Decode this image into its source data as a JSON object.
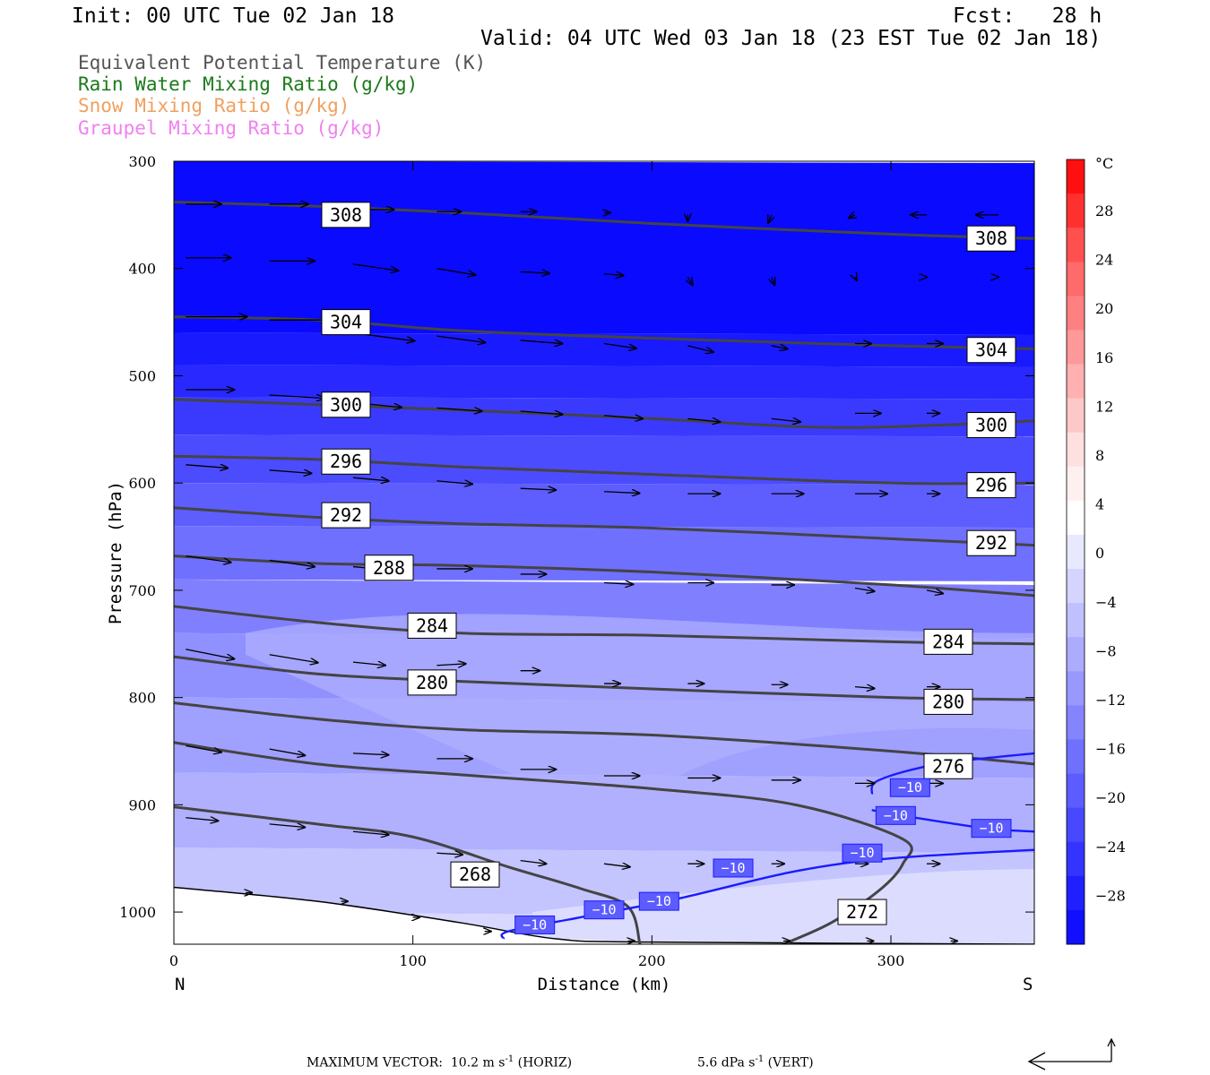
{
  "header": {
    "init": "Init: 00 UTC Tue 02 Jan 18",
    "fcst": "Fcst:   28 h",
    "valid": "Valid: 04 UTC Wed 03 Jan 18 (23 EST Tue 02 Jan 18)"
  },
  "legend": [
    {
      "label": "Equivalent Potential Temperature (K)",
      "color": "#555555"
    },
    {
      "label": "Rain Water Mixing Ratio (g/kg)",
      "color": "#1a7a1a"
    },
    {
      "label": "Snow Mixing Ratio (g/kg)",
      "color": "#f0a060"
    },
    {
      "label": "Graupel Mixing Ratio (g/kg)",
      "color": "#f080f0"
    }
  ],
  "footer": {
    "prefix": "MAXIMUM VECTOR:",
    "horiz_value": "10.2 m s",
    "horiz_exp": "-1",
    "horiz_tag": "(HORIZ)",
    "vert_value": "5.6 dPa s",
    "vert_exp": "-1",
    "vert_tag": "(VERT)"
  },
  "chart_data": {
    "type": "heatmap",
    "xlabel": "Distance (km)",
    "ylabel": "Pressure (hPa)",
    "xlim": [
      0,
      360
    ],
    "ylim": [
      1030,
      300
    ],
    "x_ticks": [
      0,
      100,
      200,
      300
    ],
    "y_ticks": [
      300,
      400,
      500,
      600,
      700,
      800,
      900,
      1000
    ],
    "x_end_labels": {
      "left": "N",
      "right": "S"
    },
    "colorbar": {
      "unit": "°C",
      "tick_labels": [
        "28",
        "24",
        "20",
        "16",
        "12",
        "8",
        "4",
        "0",
        "−4",
        "−8",
        "−12",
        "−16",
        "−20",
        "−24",
        "−28"
      ],
      "colors": [
        "#ff1010",
        "#ff3030",
        "#ff5050",
        "#ff6a6a",
        "#ff8080",
        "#ff9898",
        "#ffb0b0",
        "#ffc8c8",
        "#ffe0e0",
        "#fff0f0",
        "#ffffff",
        "#e8e8ff",
        "#d4d4ff",
        "#c0c0ff",
        "#acacff",
        "#9898ff",
        "#8484ff",
        "#7070ff",
        "#5c5cff",
        "#4848ff",
        "#3434ff",
        "#2020ff",
        "#1010ff"
      ]
    },
    "theta_e_contours": [
      {
        "label": "308",
        "values": [
          [
            0,
            338
          ],
          [
            60,
            342
          ],
          [
            120,
            348
          ],
          [
            200,
            358
          ],
          [
            300,
            368
          ],
          [
            360,
            372
          ]
        ]
      },
      {
        "label": "304",
        "values": [
          [
            0,
            445
          ],
          [
            60,
            448
          ],
          [
            120,
            458
          ],
          [
            200,
            465
          ],
          [
            300,
            472
          ],
          [
            360,
            475
          ]
        ]
      },
      {
        "label": "300",
        "values": [
          [
            0,
            522
          ],
          [
            60,
            527
          ],
          [
            120,
            532
          ],
          [
            200,
            540
          ],
          [
            270,
            548
          ],
          [
            320,
            546
          ],
          [
            360,
            542
          ]
        ]
      },
      {
        "label": "296",
        "values": [
          [
            0,
            575
          ],
          [
            60,
            578
          ],
          [
            120,
            585
          ],
          [
            200,
            592
          ],
          [
            300,
            600
          ],
          [
            360,
            600
          ]
        ]
      },
      {
        "label": "292",
        "values": [
          [
            0,
            623
          ],
          [
            60,
            632
          ],
          [
            120,
            638
          ],
          [
            200,
            642
          ],
          [
            300,
            652
          ],
          [
            360,
            658
          ]
        ]
      },
      {
        "label": "288",
        "values": [
          [
            0,
            668
          ],
          [
            60,
            675
          ],
          [
            120,
            677
          ],
          [
            200,
            683
          ],
          [
            300,
            695
          ],
          [
            360,
            705
          ]
        ]
      },
      {
        "label": "284",
        "values": [
          [
            0,
            715
          ],
          [
            60,
            730
          ],
          [
            120,
            740
          ],
          [
            200,
            742
          ],
          [
            300,
            748
          ],
          [
            360,
            750
          ]
        ]
      },
      {
        "label": "280",
        "values": [
          [
            0,
            762
          ],
          [
            60,
            778
          ],
          [
            120,
            785
          ],
          [
            200,
            792
          ],
          [
            300,
            800
          ],
          [
            360,
            802
          ]
        ]
      },
      {
        "label": "276",
        "values": [
          [
            0,
            805
          ],
          [
            60,
            820
          ],
          [
            120,
            830
          ],
          [
            200,
            835
          ],
          [
            300,
            850
          ],
          [
            360,
            862
          ]
        ]
      },
      {
        "label": "272",
        "values": [
          [
            0,
            842
          ],
          [
            60,
            862
          ],
          [
            120,
            872
          ],
          [
            200,
            885
          ],
          [
            260,
            900
          ],
          [
            305,
            932
          ],
          [
            305,
            955
          ],
          [
            295,
            980
          ],
          [
            275,
            1010
          ],
          [
            255,
            1030
          ]
        ]
      },
      {
        "label": "268",
        "values": [
          [
            0,
            902
          ],
          [
            60,
            918
          ],
          [
            100,
            930
          ],
          [
            140,
            958
          ],
          [
            170,
            978
          ],
          [
            190,
            995
          ],
          [
            195,
            1030
          ]
        ]
      }
    ],
    "temperature_contours": [
      {
        "label": "−10",
        "values": [
          [
            138,
            1025
          ],
          [
            140,
            1018
          ],
          [
            170,
            1005
          ],
          [
            210,
            988
          ],
          [
            260,
            962
          ],
          [
            300,
            950
          ],
          [
            360,
            942
          ]
        ]
      },
      {
        "label": "−10",
        "values": [
          [
            292,
            890
          ],
          [
            295,
            877
          ],
          [
            320,
            862
          ],
          [
            360,
            852
          ]
        ]
      },
      {
        "label": "−10",
        "values": [
          [
            292,
            905
          ],
          [
            310,
            912
          ],
          [
            340,
            922
          ],
          [
            360,
            925
          ]
        ]
      }
    ],
    "contour_labels_theta": [
      {
        "label": "308",
        "x": 72,
        "y": 350
      },
      {
        "label": "308",
        "x": 342,
        "y": 372
      },
      {
        "label": "304",
        "x": 72,
        "y": 450
      },
      {
        "label": "304",
        "x": 342,
        "y": 476
      },
      {
        "label": "300",
        "x": 72,
        "y": 527
      },
      {
        "label": "300",
        "x": 342,
        "y": 546
      },
      {
        "label": "296",
        "x": 72,
        "y": 580
      },
      {
        "label": "296",
        "x": 342,
        "y": 602
      },
      {
        "label": "292",
        "x": 72,
        "y": 630
      },
      {
        "label": "292",
        "x": 342,
        "y": 656
      },
      {
        "label": "288",
        "x": 90,
        "y": 679
      },
      {
        "label": "284",
        "x": 108,
        "y": 733
      },
      {
        "label": "284",
        "x": 324,
        "y": 748
      },
      {
        "label": "280",
        "x": 108,
        "y": 786
      },
      {
        "label": "280",
        "x": 324,
        "y": 804
      },
      {
        "label": "276",
        "x": 324,
        "y": 864
      },
      {
        "label": "272",
        "x": 288,
        "y": 1000
      },
      {
        "label": "268",
        "x": 126,
        "y": 965
      }
    ],
    "contour_labels_temp": [
      {
        "label": "−10",
        "x": 151,
        "y": 1012
      },
      {
        "label": "−10",
        "x": 180,
        "y": 998
      },
      {
        "label": "−10",
        "x": 203,
        "y": 990
      },
      {
        "label": "−10",
        "x": 234,
        "y": 959
      },
      {
        "label": "−10",
        "x": 288,
        "y": 945
      },
      {
        "label": "−10",
        "x": 302,
        "y": 910
      },
      {
        "label": "−10",
        "x": 308,
        "y": 884
      },
      {
        "label": "−10",
        "x": 342,
        "y": 922
      }
    ],
    "wind_vectors": [
      {
        "x": 5,
        "p": 340,
        "u": 22,
        "v": 0
      },
      {
        "x": 40,
        "p": 340,
        "u": 24,
        "v": 0
      },
      {
        "x": 80,
        "p": 345,
        "u": 18,
        "v": 0
      },
      {
        "x": 110,
        "p": 347,
        "u": 15,
        "v": 0
      },
      {
        "x": 145,
        "p": 347,
        "u": 10,
        "v": 0
      },
      {
        "x": 180,
        "p": 348,
        "u": 4,
        "v": 0
      },
      {
        "x": 215,
        "p": 350,
        "u": 0,
        "v": 4
      },
      {
        "x": 250,
        "p": 350,
        "u": -2,
        "v": 5
      },
      {
        "x": 285,
        "p": 350,
        "u": -4,
        "v": 2
      },
      {
        "x": 315,
        "p": 350,
        "u": -10,
        "v": 0
      },
      {
        "x": 345,
        "p": 350,
        "u": -14,
        "v": 0
      },
      {
        "x": 5,
        "p": 390,
        "u": 28,
        "v": 0
      },
      {
        "x": 40,
        "p": 393,
        "u": 28,
        "v": 0
      },
      {
        "x": 75,
        "p": 396,
        "u": 28,
        "v": 4
      },
      {
        "x": 110,
        "p": 400,
        "u": 24,
        "v": 4
      },
      {
        "x": 145,
        "p": 403,
        "u": 18,
        "v": 1
      },
      {
        "x": 180,
        "p": 405,
        "u": 12,
        "v": 1
      },
      {
        "x": 215,
        "p": 408,
        "u": 3,
        "v": 5
      },
      {
        "x": 250,
        "p": 408,
        "u": 2,
        "v": 5
      },
      {
        "x": 285,
        "p": 408,
        "u": 1,
        "v": 2
      },
      {
        "x": 315,
        "p": 408,
        "u": 0,
        "v": 0
      },
      {
        "x": 345,
        "p": 408,
        "u": 0,
        "v": 0
      },
      {
        "x": 5,
        "p": 445,
        "u": 38,
        "v": 0
      },
      {
        "x": 40,
        "p": 448,
        "u": 38,
        "v": 0
      },
      {
        "x": 75,
        "p": 460,
        "u": 38,
        "v": 5
      },
      {
        "x": 110,
        "p": 463,
        "u": 30,
        "v": 4
      },
      {
        "x": 145,
        "p": 467,
        "u": 26,
        "v": 2
      },
      {
        "x": 180,
        "p": 470,
        "u": 20,
        "v": 3
      },
      {
        "x": 215,
        "p": 472,
        "u": 16,
        "v": 4
      },
      {
        "x": 250,
        "p": 472,
        "u": 10,
        "v": 2
      },
      {
        "x": 285,
        "p": 470,
        "u": 10,
        "v": 0
      },
      {
        "x": 315,
        "p": 470,
        "u": 10,
        "v": 0
      },
      {
        "x": 5,
        "p": 513,
        "u": 30,
        "v": 0
      },
      {
        "x": 40,
        "p": 518,
        "u": 34,
        "v": 2
      },
      {
        "x": 75,
        "p": 525,
        "u": 30,
        "v": 3
      },
      {
        "x": 110,
        "p": 530,
        "u": 28,
        "v": 2
      },
      {
        "x": 145,
        "p": 533,
        "u": 26,
        "v": 2
      },
      {
        "x": 180,
        "p": 537,
        "u": 24,
        "v": 2
      },
      {
        "x": 215,
        "p": 540,
        "u": 20,
        "v": 2
      },
      {
        "x": 250,
        "p": 540,
        "u": 18,
        "v": 2
      },
      {
        "x": 285,
        "p": 535,
        "u": 16,
        "v": 0
      },
      {
        "x": 315,
        "p": 535,
        "u": 8,
        "v": 0
      },
      {
        "x": 5,
        "p": 583,
        "u": 26,
        "v": 2
      },
      {
        "x": 40,
        "p": 588,
        "u": 26,
        "v": 2
      },
      {
        "x": 75,
        "p": 595,
        "u": 22,
        "v": 2
      },
      {
        "x": 110,
        "p": 598,
        "u": 22,
        "v": 2
      },
      {
        "x": 145,
        "p": 605,
        "u": 22,
        "v": 1
      },
      {
        "x": 180,
        "p": 608,
        "u": 22,
        "v": 1
      },
      {
        "x": 215,
        "p": 610,
        "u": 20,
        "v": 0
      },
      {
        "x": 250,
        "p": 610,
        "u": 20,
        "v": 0
      },
      {
        "x": 285,
        "p": 610,
        "u": 20,
        "v": 0
      },
      {
        "x": 315,
        "p": 610,
        "u": 8,
        "v": 0
      },
      {
        "x": 5,
        "p": 668,
        "u": 28,
        "v": 4
      },
      {
        "x": 40,
        "p": 672,
        "u": 28,
        "v": 4
      },
      {
        "x": 75,
        "p": 678,
        "u": 22,
        "v": 2
      },
      {
        "x": 110,
        "p": 680,
        "u": 22,
        "v": 0
      },
      {
        "x": 145,
        "p": 685,
        "u": 16,
        "v": 0
      },
      {
        "x": 180,
        "p": 693,
        "u": 18,
        "v": 1
      },
      {
        "x": 215,
        "p": 693,
        "u": 16,
        "v": 0
      },
      {
        "x": 250,
        "p": 695,
        "u": 14,
        "v": 0
      },
      {
        "x": 285,
        "p": 698,
        "u": 12,
        "v": 2
      },
      {
        "x": 315,
        "p": 700,
        "u": 10,
        "v": 2
      },
      {
        "x": 5,
        "p": 755,
        "u": 30,
        "v": 6
      },
      {
        "x": 40,
        "p": 760,
        "u": 30,
        "v": 5
      },
      {
        "x": 75,
        "p": 767,
        "u": 20,
        "v": 2
      },
      {
        "x": 110,
        "p": 770,
        "u": 18,
        "v": -1
      },
      {
        "x": 145,
        "p": 775,
        "u": 12,
        "v": 0
      },
      {
        "x": 180,
        "p": 787,
        "u": 10,
        "v": 0
      },
      {
        "x": 215,
        "p": 787,
        "u": 10,
        "v": 0
      },
      {
        "x": 250,
        "p": 788,
        "u": 10,
        "v": 0
      },
      {
        "x": 285,
        "p": 790,
        "u": 12,
        "v": 1
      },
      {
        "x": 315,
        "p": 790,
        "u": 8,
        "v": 0
      },
      {
        "x": 5,
        "p": 845,
        "u": 22,
        "v": 4
      },
      {
        "x": 40,
        "p": 848,
        "u": 22,
        "v": 4
      },
      {
        "x": 75,
        "p": 852,
        "u": 22,
        "v": 1
      },
      {
        "x": 110,
        "p": 857,
        "u": 22,
        "v": 0
      },
      {
        "x": 145,
        "p": 867,
        "u": 22,
        "v": 0
      },
      {
        "x": 180,
        "p": 873,
        "u": 22,
        "v": 0
      },
      {
        "x": 215,
        "p": 875,
        "u": 20,
        "v": 0
      },
      {
        "x": 250,
        "p": 877,
        "u": 18,
        "v": 0
      },
      {
        "x": 285,
        "p": 880,
        "u": 12,
        "v": 0
      },
      {
        "x": 315,
        "p": 880,
        "u": 10,
        "v": 0
      },
      {
        "x": 5,
        "p": 912,
        "u": 20,
        "v": 2
      },
      {
        "x": 40,
        "p": 918,
        "u": 22,
        "v": 2
      },
      {
        "x": 75,
        "p": 925,
        "u": 22,
        "v": 2
      },
      {
        "x": 110,
        "p": 945,
        "u": 16,
        "v": 1
      },
      {
        "x": 145,
        "p": 952,
        "u": 16,
        "v": 2
      },
      {
        "x": 180,
        "p": 955,
        "u": 16,
        "v": 2
      },
      {
        "x": 215,
        "p": 955,
        "u": 10,
        "v": 0
      },
      {
        "x": 250,
        "p": 955,
        "u": 8,
        "v": 0
      },
      {
        "x": 285,
        "p": 955,
        "u": 8,
        "v": 0
      },
      {
        "x": 315,
        "p": 955,
        "u": 8,
        "v": 0
      },
      {
        "x": 30,
        "p": 982,
        "u": 4,
        "v": 0
      },
      {
        "x": 70,
        "p": 990,
        "u": 4,
        "v": 0
      },
      {
        "x": 100,
        "p": 1005,
        "u": 4,
        "v": 0
      },
      {
        "x": 130,
        "p": 1018,
        "u": 4,
        "v": 0
      },
      {
        "x": 190,
        "p": 1027,
        "u": 4,
        "v": 0
      },
      {
        "x": 255,
        "p": 1027,
        "u": 4,
        "v": 0
      },
      {
        "x": 290,
        "p": 1027,
        "u": 4,
        "v": 0
      },
      {
        "x": 325,
        "p": 1027,
        "u": 4,
        "v": 0
      }
    ],
    "terrain": [
      [
        0,
        977
      ],
      [
        60,
        990
      ],
      [
        120,
        1010
      ],
      [
        160,
        1025
      ],
      [
        200,
        1028
      ],
      [
        360,
        1030
      ]
    ]
  }
}
